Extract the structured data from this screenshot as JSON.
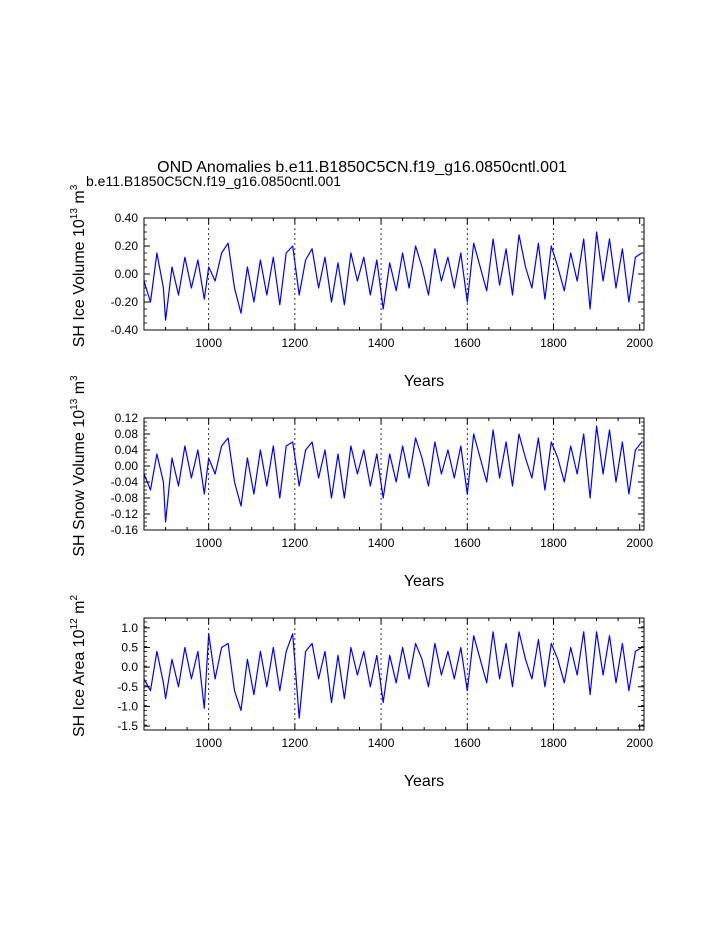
{
  "figure": {
    "title": "OND Anomalies b.e11.B1850C5CN.f19_g16.0850cntl.001",
    "subtitle": "b.e11.B1850C5CN.f19_g16.0850cntl.001",
    "subtitle_color": "#0000ff",
    "line_color": "#0000ff"
  },
  "chart_data": [
    {
      "type": "line",
      "ylabel": "SH Ice Volume 10",
      "ylabel_exp": "13",
      "ylabel_unit": " m",
      "ylabel_unit_exp": "3",
      "xlabel": "Years",
      "xlim": [
        850,
        2010
      ],
      "ylim": [
        -0.4,
        0.4
      ],
      "yticks": [
        -0.4,
        -0.2,
        0.0,
        0.2,
        0.4
      ],
      "ytick_labels": [
        "-0.40",
        "-0.20",
        "0.00",
        "0.20",
        "0.40"
      ],
      "xticks": [
        1000,
        1200,
        1400,
        1600,
        1800,
        2000
      ],
      "xtick_labels": [
        "1000",
        "1200",
        "1400",
        "1600",
        "1800",
        "2000"
      ],
      "gridlines_x": [
        1000,
        1200,
        1400,
        1600,
        1800
      ],
      "series": [
        {
          "name": "b.e11.B1850C5CN.f19_g16.0850cntl.001",
          "x": [
            850,
            865,
            880,
            895,
            900,
            915,
            930,
            945,
            960,
            975,
            990,
            1000,
            1015,
            1030,
            1045,
            1060,
            1075,
            1090,
            1105,
            1120,
            1135,
            1150,
            1165,
            1180,
            1195,
            1210,
            1225,
            1240,
            1255,
            1270,
            1285,
            1300,
            1315,
            1330,
            1345,
            1360,
            1375,
            1390,
            1405,
            1420,
            1435,
            1450,
            1465,
            1480,
            1495,
            1510,
            1525,
            1540,
            1555,
            1570,
            1585,
            1600,
            1615,
            1630,
            1645,
            1660,
            1675,
            1690,
            1705,
            1720,
            1735,
            1750,
            1765,
            1780,
            1795,
            1810,
            1825,
            1840,
            1855,
            1870,
            1885,
            1900,
            1915,
            1930,
            1945,
            1960,
            1975,
            1990,
            2005
          ],
          "y": [
            -0.05,
            -0.2,
            0.15,
            -0.1,
            -0.33,
            0.05,
            -0.15,
            0.12,
            -0.1,
            0.1,
            -0.18,
            0.05,
            -0.05,
            0.15,
            0.22,
            -0.1,
            -0.28,
            0.05,
            -0.2,
            0.1,
            -0.15,
            0.12,
            -0.22,
            0.15,
            0.2,
            -0.15,
            0.1,
            0.18,
            -0.1,
            0.12,
            -0.2,
            0.08,
            -0.22,
            0.15,
            -0.05,
            0.12,
            -0.15,
            0.1,
            -0.25,
            0.08,
            -0.12,
            0.15,
            -0.1,
            0.2,
            0.05,
            -0.15,
            0.18,
            -0.05,
            0.12,
            -0.1,
            0.15,
            -0.2,
            0.22,
            0.05,
            -0.12,
            0.25,
            -0.08,
            0.18,
            -0.15,
            0.28,
            0.05,
            -0.1,
            0.22,
            -0.18,
            0.2,
            0.05,
            -0.12,
            0.15,
            -0.05,
            0.25,
            -0.25,
            0.3,
            -0.05,
            0.25,
            -0.1,
            0.18,
            -0.2,
            0.12,
            0.15
          ]
        }
      ]
    },
    {
      "type": "line",
      "ylabel": "SH Snow Volume 10",
      "ylabel_exp": "13",
      "ylabel_unit": " m",
      "ylabel_unit_exp": "3",
      "xlabel": "Years",
      "xlim": [
        850,
        2010
      ],
      "ylim": [
        -0.16,
        0.12
      ],
      "yticks": [
        -0.16,
        -0.12,
        -0.08,
        -0.04,
        0.0,
        0.04,
        0.08,
        0.12
      ],
      "ytick_labels": [
        "-0.16",
        "-0.12",
        "-0.08",
        "-0.04",
        "0.00",
        "0.04",
        "0.08",
        "0.12"
      ],
      "xticks": [
        1000,
        1200,
        1400,
        1600,
        1800,
        2000
      ],
      "xtick_labels": [
        "1000",
        "1200",
        "1400",
        "1600",
        "1800",
        "2000"
      ],
      "gridlines_x": [
        1000,
        1200,
        1400,
        1600,
        1800
      ],
      "series": [
        {
          "name": "b.e11.B1850C5CN.f19_g16.0850cntl.001",
          "x": [
            850,
            865,
            880,
            895,
            900,
            915,
            930,
            945,
            960,
            975,
            990,
            1000,
            1015,
            1030,
            1045,
            1060,
            1075,
            1090,
            1105,
            1120,
            1135,
            1150,
            1165,
            1180,
            1195,
            1210,
            1225,
            1240,
            1255,
            1270,
            1285,
            1300,
            1315,
            1330,
            1345,
            1360,
            1375,
            1390,
            1405,
            1420,
            1435,
            1450,
            1465,
            1480,
            1495,
            1510,
            1525,
            1540,
            1555,
            1570,
            1585,
            1600,
            1615,
            1630,
            1645,
            1660,
            1675,
            1690,
            1705,
            1720,
            1735,
            1750,
            1765,
            1780,
            1795,
            1810,
            1825,
            1840,
            1855,
            1870,
            1885,
            1900,
            1915,
            1930,
            1945,
            1960,
            1975,
            1990,
            2005
          ],
          "y": [
            -0.02,
            -0.06,
            0.03,
            -0.04,
            -0.14,
            0.02,
            -0.05,
            0.05,
            -0.03,
            0.04,
            -0.07,
            0.02,
            -0.02,
            0.05,
            0.07,
            -0.04,
            -0.1,
            0.02,
            -0.07,
            0.04,
            -0.05,
            0.05,
            -0.08,
            0.05,
            0.06,
            -0.05,
            0.04,
            0.06,
            -0.03,
            0.04,
            -0.08,
            0.03,
            -0.08,
            0.05,
            -0.02,
            0.04,
            -0.05,
            0.03,
            -0.08,
            0.03,
            -0.04,
            0.05,
            -0.03,
            0.07,
            0.02,
            -0.05,
            0.06,
            -0.02,
            0.04,
            -0.03,
            0.05,
            -0.07,
            0.08,
            0.02,
            -0.04,
            0.09,
            -0.03,
            0.06,
            -0.05,
            0.08,
            0.02,
            -0.03,
            0.07,
            -0.06,
            0.06,
            0.02,
            -0.04,
            0.05,
            -0.02,
            0.08,
            -0.08,
            0.1,
            -0.02,
            0.09,
            -0.04,
            0.06,
            -0.07,
            0.04,
            0.06
          ]
        }
      ]
    },
    {
      "type": "line",
      "ylabel": "SH Ice Area 10",
      "ylabel_exp": "12",
      "ylabel_unit": " m",
      "ylabel_unit_exp": "2",
      "xlabel": "Years",
      "xlim": [
        850,
        2010
      ],
      "ylim": [
        -1.6,
        1.25
      ],
      "yticks": [
        -1.5,
        -1.0,
        -0.5,
        0.0,
        0.5,
        1.0
      ],
      "ytick_labels": [
        "-1.5",
        "-1.0",
        "-0.5",
        "0.0",
        "0.5",
        "1.0"
      ],
      "xticks": [
        1000,
        1200,
        1400,
        1600,
        1800,
        2000
      ],
      "xtick_labels": [
        "1000",
        "1200",
        "1400",
        "1600",
        "1800",
        "2000"
      ],
      "gridlines_x": [
        1000,
        1200,
        1400,
        1600,
        1800
      ],
      "series": [
        {
          "name": "b.e11.B1850C5CN.f19_g16.0850cntl.001",
          "x": [
            850,
            865,
            880,
            895,
            900,
            915,
            930,
            945,
            960,
            975,
            990,
            1000,
            1015,
            1030,
            1045,
            1060,
            1075,
            1090,
            1105,
            1120,
            1135,
            1150,
            1165,
            1180,
            1195,
            1210,
            1225,
            1240,
            1255,
            1270,
            1285,
            1300,
            1315,
            1330,
            1345,
            1360,
            1375,
            1390,
            1405,
            1420,
            1435,
            1450,
            1465,
            1480,
            1495,
            1510,
            1525,
            1540,
            1555,
            1570,
            1585,
            1600,
            1615,
            1630,
            1645,
            1660,
            1675,
            1690,
            1705,
            1720,
            1735,
            1750,
            1765,
            1780,
            1795,
            1810,
            1825,
            1840,
            1855,
            1870,
            1885,
            1900,
            1915,
            1930,
            1945,
            1960,
            1975,
            1990,
            2005
          ],
          "y": [
            -0.3,
            -0.6,
            0.4,
            -0.4,
            -0.8,
            0.2,
            -0.5,
            0.5,
            -0.3,
            0.4,
            -1.05,
            0.85,
            -0.3,
            0.5,
            0.6,
            -0.6,
            -1.1,
            0.2,
            -0.7,
            0.4,
            -0.5,
            0.5,
            -0.6,
            0.4,
            0.85,
            -1.3,
            0.4,
            0.6,
            -0.3,
            0.4,
            -0.9,
            0.3,
            -0.8,
            0.5,
            -0.2,
            0.4,
            -0.5,
            0.3,
            -0.9,
            0.3,
            -0.4,
            0.5,
            -0.3,
            0.6,
            0.2,
            -0.5,
            0.6,
            -0.2,
            0.4,
            -0.3,
            0.5,
            -0.6,
            0.8,
            0.2,
            -0.4,
            0.9,
            -0.3,
            0.6,
            -0.5,
            0.9,
            0.2,
            -0.3,
            0.7,
            -0.5,
            0.6,
            0.2,
            -0.4,
            0.5,
            -0.2,
            0.9,
            -0.7,
            0.9,
            -0.2,
            0.8,
            -0.4,
            0.6,
            -0.6,
            0.4,
            0.5
          ]
        }
      ]
    }
  ]
}
